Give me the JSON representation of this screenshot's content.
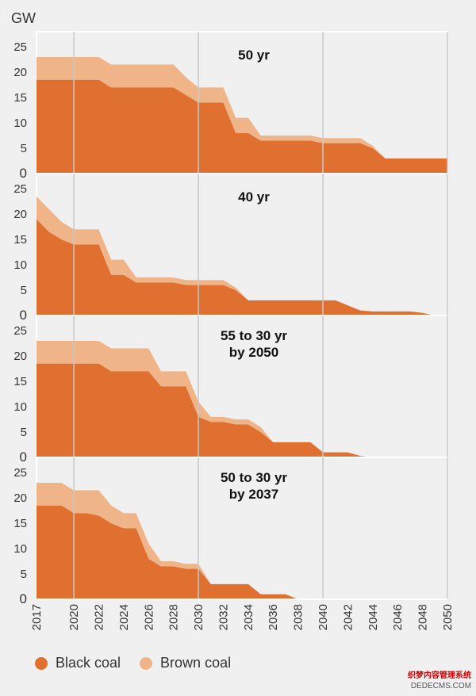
{
  "chart_data": {
    "type": "area",
    "unit_label": "GW",
    "ytick_labels": [
      "0",
      "5",
      "10",
      "15",
      "20",
      "25"
    ],
    "ylim": [
      0,
      28
    ],
    "x": [
      2017,
      2018,
      2019,
      2020,
      2021,
      2022,
      2023,
      2024,
      2025,
      2026,
      2027,
      2028,
      2029,
      2030,
      2031,
      2032,
      2033,
      2034,
      2035,
      2036,
      2037,
      2038,
      2039,
      2040,
      2041,
      2042,
      2043,
      2044,
      2045,
      2046,
      2047,
      2048,
      2049,
      2050
    ],
    "xtick_labels": [
      "2017",
      "2020",
      "2022",
      "2024",
      "2026",
      "2028",
      "2030",
      "2032",
      "2034",
      "2036",
      "2038",
      "2040",
      "2042",
      "2044",
      "2046",
      "2048",
      "2050"
    ],
    "legend": [
      {
        "name": "Black coal",
        "color": "#e07030"
      },
      {
        "name": "Brown coal",
        "color": "#efb488"
      }
    ],
    "panels": [
      {
        "title": "50 yr",
        "series": [
          {
            "name": "Black coal",
            "values": [
              18.5,
              18.5,
              18.5,
              18.5,
              18.5,
              18.5,
              17.0,
              17.0,
              17.0,
              17.0,
              17.0,
              17.0,
              15.5,
              14.0,
              14.0,
              14.0,
              8.0,
              8.0,
              6.5,
              6.5,
              6.5,
              6.5,
              6.5,
              6.0,
              6.0,
              6.0,
              6.0,
              5.0,
              3.0,
              3.0,
              3.0,
              3.0,
              3.0,
              3.0
            ]
          },
          {
            "name": "Brown coal",
            "values": [
              4.5,
              4.5,
              4.5,
              4.5,
              4.5,
              4.5,
              4.5,
              4.5,
              4.5,
              4.5,
              4.5,
              4.5,
              3.5,
              3.0,
              3.0,
              3.0,
              3.0,
              3.0,
              1.0,
              1.0,
              1.0,
              1.0,
              1.0,
              1.0,
              1.0,
              1.0,
              1.0,
              0.5,
              0,
              0,
              0,
              0,
              0,
              0
            ]
          }
        ]
      },
      {
        "title": "40 yr",
        "series": [
          {
            "name": "Black coal",
            "values": [
              19.0,
              16.5,
              15.0,
              14.0,
              14.0,
              14.0,
              8.0,
              8.0,
              6.5,
              6.5,
              6.5,
              6.5,
              6.0,
              6.0,
              6.0,
              6.0,
              5.0,
              3.0,
              3.0,
              3.0,
              3.0,
              3.0,
              3.0,
              3.0,
              3.0,
              2.0,
              1.0,
              0.8,
              0.8,
              0.8,
              0.8,
              0.5,
              0,
              0
            ]
          },
          {
            "name": "Brown coal",
            "values": [
              4.5,
              4.5,
              3.5,
              3.0,
              3.0,
              3.0,
              3.0,
              3.0,
              1.0,
              1.0,
              1.0,
              1.0,
              1.0,
              1.0,
              1.0,
              1.0,
              0.5,
              0,
              0,
              0,
              0,
              0,
              0,
              0,
              0,
              0,
              0,
              0,
              0,
              0,
              0,
              0,
              0,
              0
            ]
          }
        ]
      },
      {
        "title": "55 to 30 yr\nby 2050",
        "series": [
          {
            "name": "Black coal",
            "values": [
              18.5,
              18.5,
              18.5,
              18.5,
              18.5,
              18.5,
              17.0,
              17.0,
              17.0,
              17.0,
              14.0,
              14.0,
              14.0,
              8.0,
              7.0,
              7.0,
              6.5,
              6.5,
              5.0,
              3.0,
              3.0,
              3.0,
              3.0,
              1.0,
              1.0,
              1.0,
              0.3,
              0,
              0,
              0,
              0,
              0,
              0,
              0
            ]
          },
          {
            "name": "Brown coal",
            "values": [
              4.5,
              4.5,
              4.5,
              4.5,
              4.5,
              4.5,
              4.5,
              4.5,
              4.5,
              4.5,
              3.0,
              3.0,
              3.0,
              3.0,
              1.0,
              1.0,
              1.0,
              1.0,
              1.0,
              0,
              0,
              0,
              0,
              0,
              0,
              0,
              0,
              0,
              0,
              0,
              0,
              0,
              0,
              0
            ]
          }
        ]
      },
      {
        "title": "50 to 30 yr\nby 2037",
        "series": [
          {
            "name": "Black coal",
            "values": [
              18.5,
              18.5,
              18.5,
              17.0,
              17.0,
              16.5,
              15.0,
              14.0,
              14.0,
              8.0,
              6.5,
              6.5,
              6.0,
              6.0,
              3.0,
              3.0,
              3.0,
              3.0,
              1.0,
              1.0,
              1.0,
              0,
              0,
              0,
              0,
              0,
              0,
              0,
              0,
              0,
              0,
              0,
              0,
              0
            ]
          },
          {
            "name": "Brown coal",
            "values": [
              4.5,
              4.5,
              4.5,
              4.5,
              4.5,
              5.0,
              3.5,
              3.0,
              3.0,
              3.0,
              1.0,
              1.0,
              1.0,
              1.0,
              0,
              0,
              0,
              0,
              0,
              0,
              0,
              0,
              0,
              0,
              0,
              0,
              0,
              0,
              0,
              0,
              0,
              0,
              0,
              0
            ]
          }
        ]
      }
    ]
  },
  "watermark": {
    "line1": "织梦内容管理系统",
    "line2": "DEDECMS.COM"
  }
}
